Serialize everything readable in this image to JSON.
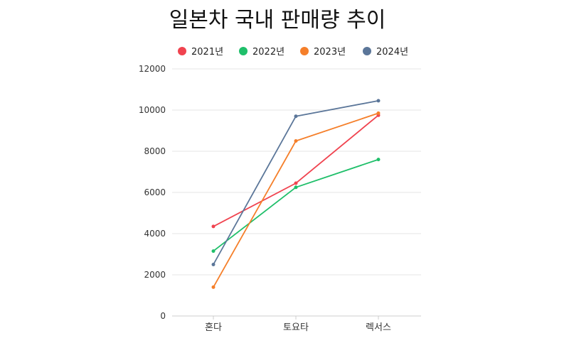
{
  "chart_data": {
    "type": "line",
    "title": "일본차 국내 판매량 추이",
    "categories": [
      "혼다",
      "토요타",
      "렉서스"
    ],
    "ylim": [
      0,
      12000
    ],
    "yticks": [
      0,
      2000,
      4000,
      6000,
      8000,
      10000,
      12000
    ],
    "grid": true,
    "legend_position": "top",
    "series": [
      {
        "name": "2021년",
        "color": "#f0434f",
        "values": [
          4350,
          6450,
          9750
        ]
      },
      {
        "name": "2022년",
        "color": "#1fbf6a",
        "values": [
          3150,
          6250,
          7600
        ]
      },
      {
        "name": "2023년",
        "color": "#f57f2a",
        "values": [
          1400,
          8500,
          9850
        ]
      },
      {
        "name": "2024년",
        "color": "#5b7699",
        "values": [
          2500,
          9700,
          10450
        ]
      }
    ]
  }
}
